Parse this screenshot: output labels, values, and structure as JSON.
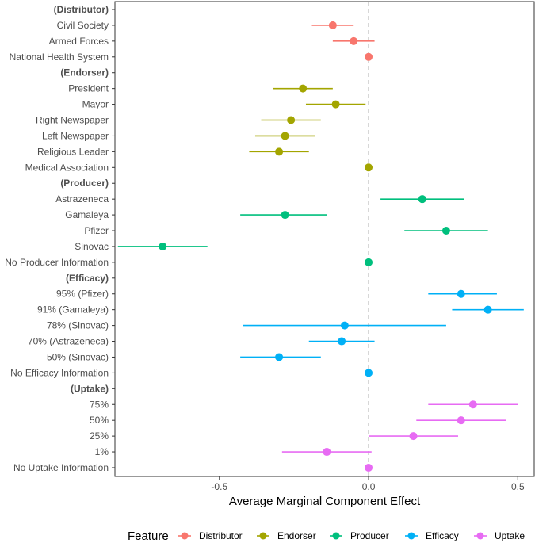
{
  "chart_data": {
    "type": "scatter",
    "subtype": "coefficient-plot-with-error-bars",
    "xlabel": "Average Marginal Component Effect",
    "ylabel": "",
    "xlim": [
      -0.85,
      0.555
    ],
    "xticks": [
      -0.5,
      0.0,
      0.5
    ],
    "xtick_labels": [
      "-0.5",
      "0.0",
      "0.5"
    ],
    "reference_line_x": 0,
    "grid": false,
    "legend": {
      "title": "Feature",
      "position": "bottom",
      "entries": [
        {
          "name": "Distributor",
          "color": "#F8766D"
        },
        {
          "name": "Endorser",
          "color": "#A3A500"
        },
        {
          "name": "Producer",
          "color": "#00BF7D"
        },
        {
          "name": "Efficacy",
          "color": "#00B0F6"
        },
        {
          "name": "Uptake",
          "color": "#E76BF3"
        }
      ]
    },
    "rows": [
      {
        "label": "(Distributor)",
        "header": true
      },
      {
        "label": "Civil Society",
        "group": "Distributor",
        "estimate": -0.12,
        "ci": [
          -0.19,
          -0.05
        ]
      },
      {
        "label": "Armed Forces",
        "group": "Distributor",
        "estimate": -0.05,
        "ci": [
          -0.12,
          0.02
        ]
      },
      {
        "label": "National Health System",
        "group": "Distributor",
        "estimate": 0.0,
        "ci": [
          0.0,
          0.0
        ]
      },
      {
        "label": "(Endorser)",
        "header": true
      },
      {
        "label": "President",
        "group": "Endorser",
        "estimate": -0.22,
        "ci": [
          -0.32,
          -0.12
        ]
      },
      {
        "label": "Mayor",
        "group": "Endorser",
        "estimate": -0.11,
        "ci": [
          -0.21,
          -0.01
        ]
      },
      {
        "label": "Right Newspaper",
        "group": "Endorser",
        "estimate": -0.26,
        "ci": [
          -0.36,
          -0.16
        ]
      },
      {
        "label": "Left Newspaper",
        "group": "Endorser",
        "estimate": -0.28,
        "ci": [
          -0.38,
          -0.18
        ]
      },
      {
        "label": "Religious Leader",
        "group": "Endorser",
        "estimate": -0.3,
        "ci": [
          -0.4,
          -0.2
        ]
      },
      {
        "label": "Medical Association",
        "group": "Endorser",
        "estimate": 0.0,
        "ci": [
          0.0,
          0.0
        ]
      },
      {
        "label": "(Producer)",
        "header": true
      },
      {
        "label": "Astrazeneca",
        "group": "Producer",
        "estimate": 0.18,
        "ci": [
          0.04,
          0.32
        ]
      },
      {
        "label": "Gamaleya",
        "group": "Producer",
        "estimate": -0.28,
        "ci": [
          -0.43,
          -0.14
        ]
      },
      {
        "label": "Pfizer",
        "group": "Producer",
        "estimate": 0.26,
        "ci": [
          0.12,
          0.4
        ]
      },
      {
        "label": "Sinovac",
        "group": "Producer",
        "estimate": -0.69,
        "ci": [
          -0.84,
          -0.54
        ]
      },
      {
        "label": "No Producer Information",
        "group": "Producer",
        "estimate": 0.0,
        "ci": [
          0.0,
          0.0
        ]
      },
      {
        "label": "(Efficacy)",
        "header": true
      },
      {
        "label": "95% (Pfizer)",
        "group": "Efficacy",
        "estimate": 0.31,
        "ci": [
          0.2,
          0.43
        ]
      },
      {
        "label": "91% (Gamaleya)",
        "group": "Efficacy",
        "estimate": 0.4,
        "ci": [
          0.28,
          0.52
        ]
      },
      {
        "label": "78% (Sinovac)",
        "group": "Efficacy",
        "estimate": -0.08,
        "ci": [
          -0.42,
          0.26
        ]
      },
      {
        "label": "70% (Astrazeneca)",
        "group": "Efficacy",
        "estimate": -0.09,
        "ci": [
          -0.2,
          0.02
        ]
      },
      {
        "label": "50% (Sinovac)",
        "group": "Efficacy",
        "estimate": -0.3,
        "ci": [
          -0.43,
          -0.16
        ]
      },
      {
        "label": "No Efficacy Information",
        "group": "Efficacy",
        "estimate": 0.0,
        "ci": [
          0.0,
          0.0
        ]
      },
      {
        "label": "(Uptake)",
        "header": true
      },
      {
        "label": "75%",
        "group": "Uptake",
        "estimate": 0.35,
        "ci": [
          0.2,
          0.5
        ]
      },
      {
        "label": "50%",
        "group": "Uptake",
        "estimate": 0.31,
        "ci": [
          0.16,
          0.46
        ]
      },
      {
        "label": "25%",
        "group": "Uptake",
        "estimate": 0.15,
        "ci": [
          0.0,
          0.3
        ]
      },
      {
        "label": "1%",
        "group": "Uptake",
        "estimate": -0.14,
        "ci": [
          -0.29,
          0.01
        ]
      },
      {
        "label": "No Uptake Information",
        "group": "Uptake",
        "estimate": 0.0,
        "ci": [
          0.0,
          0.0
        ]
      }
    ]
  }
}
